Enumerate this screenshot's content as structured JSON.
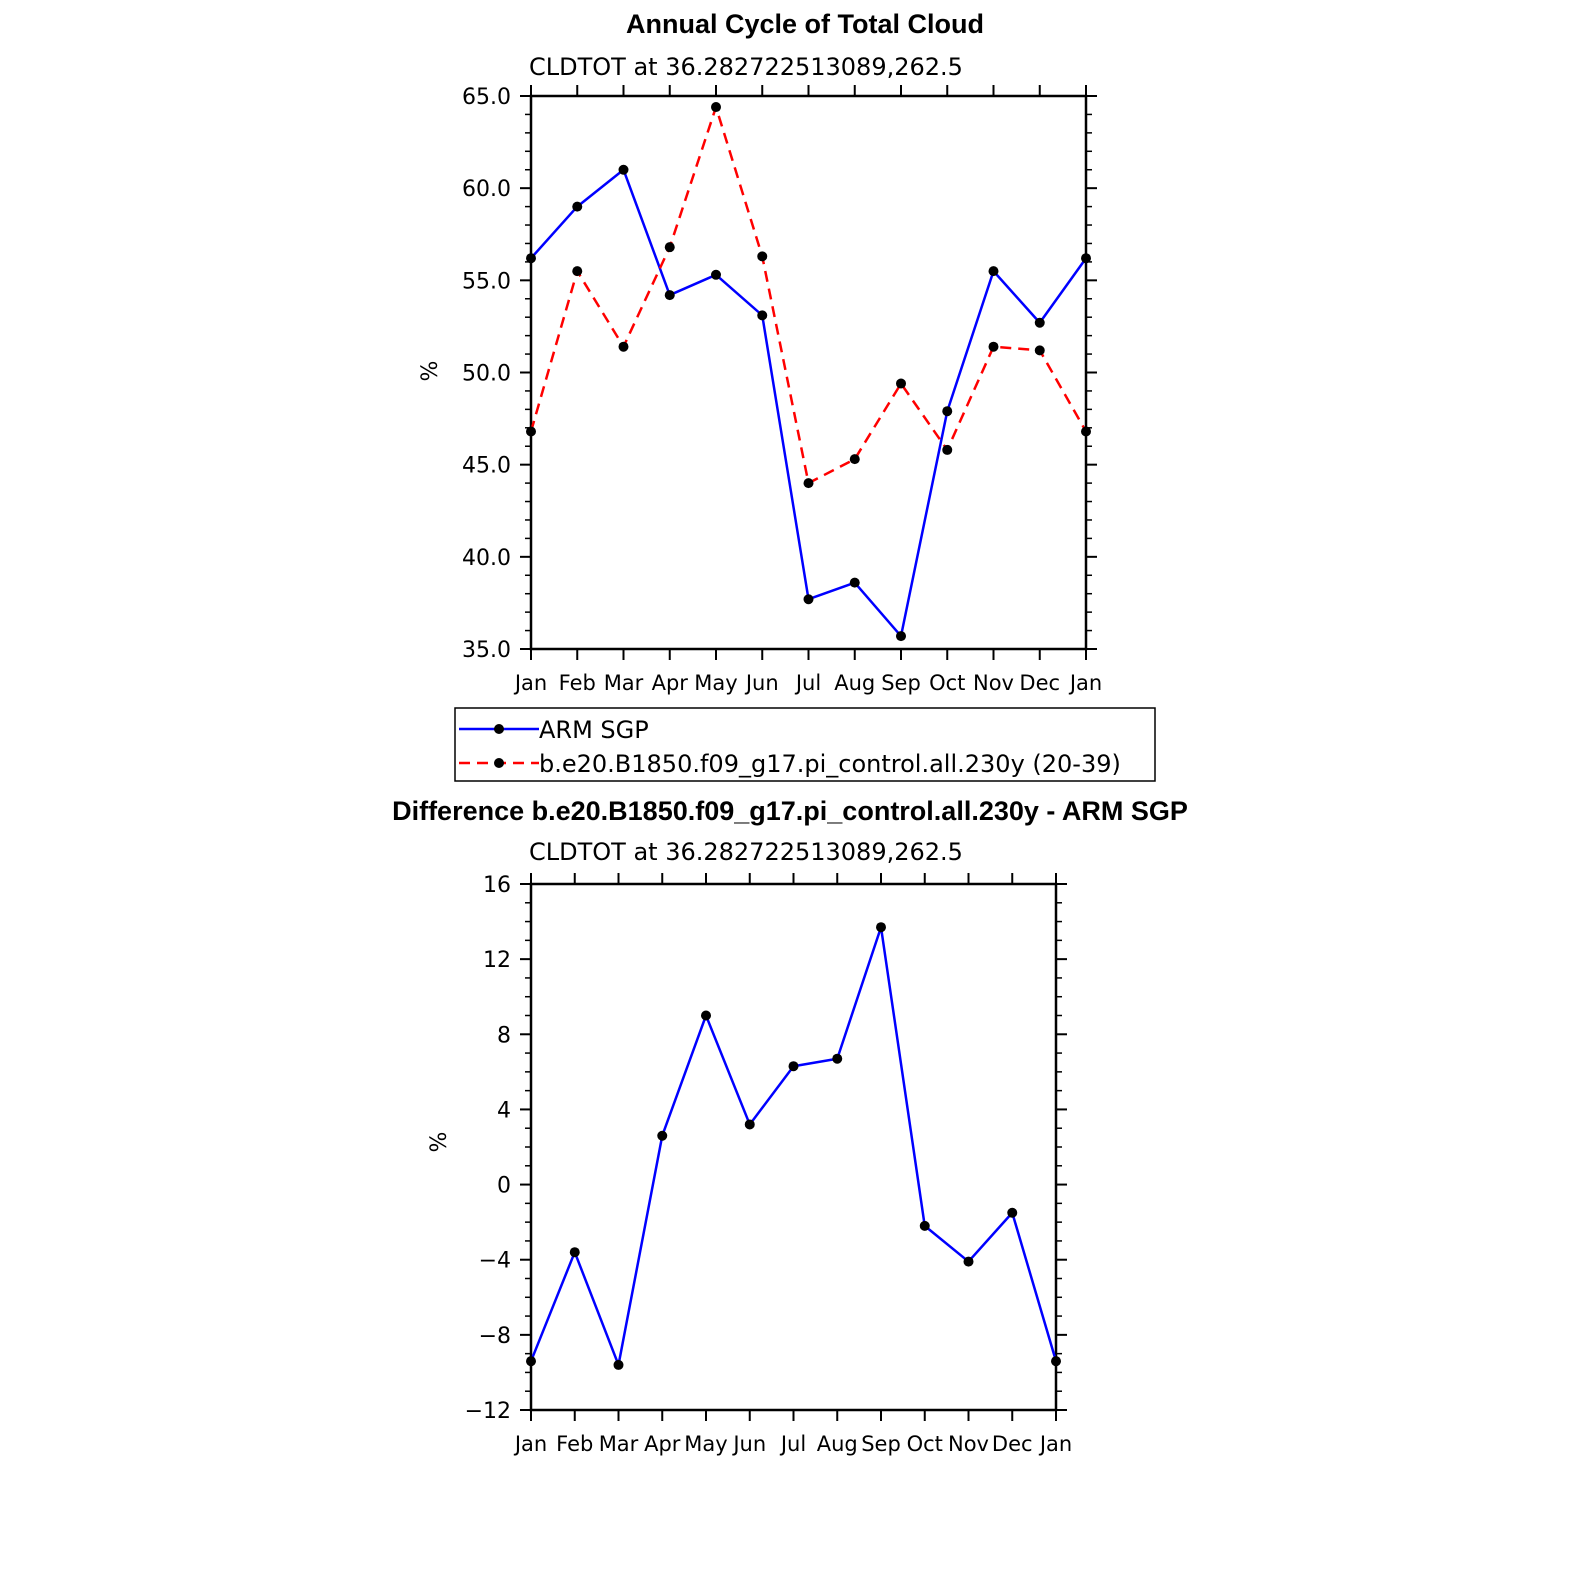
{
  "chart_data": [
    {
      "type": "line",
      "title": "Annual Cycle of Total Cloud",
      "subtitle": "CLDTOT at 36.282722513089,262.5",
      "ylabel": "%",
      "categories": [
        "Jan",
        "Feb",
        "Mar",
        "Apr",
        "May",
        "Jun",
        "Jul",
        "Aug",
        "Sep",
        "Oct",
        "Nov",
        "Dec",
        "Jan"
      ],
      "ylim": [
        35,
        65
      ],
      "yticks": [
        "35.0",
        "40.0",
        "45.0",
        "50.0",
        "55.0",
        "60.0",
        "65.0"
      ],
      "series": [
        {
          "name": "ARM SGP",
          "color": "#0000ff",
          "dash": "solid",
          "values": [
            56.2,
            59.0,
            61.0,
            54.2,
            55.3,
            53.1,
            37.7,
            38.6,
            35.7,
            47.9,
            55.5,
            52.7,
            56.2
          ]
        },
        {
          "name": "b.e20.B1850.f09_g17.pi_control.all.230y (20-39)",
          "color": "#ff0000",
          "dash": "dashed",
          "values": [
            46.8,
            55.5,
            51.4,
            56.8,
            64.4,
            56.3,
            44.0,
            45.3,
            49.4,
            45.8,
            51.4,
            51.2,
            46.8
          ]
        }
      ],
      "legend": "below"
    },
    {
      "type": "line",
      "title": "Difference b.e20.B1850.f09_g17.pi_control.all.230y - ARM SGP",
      "subtitle": "CLDTOT at 36.282722513089,262.5",
      "ylabel": "%",
      "categories": [
        "Jan",
        "Feb",
        "Mar",
        "Apr",
        "May",
        "Jun",
        "Jul",
        "Aug",
        "Sep",
        "Oct",
        "Nov",
        "Dec",
        "Jan"
      ],
      "ylim": [
        -12,
        16
      ],
      "yticks": [
        "−12",
        "−8",
        "−4",
        "0",
        "4",
        "8",
        "12",
        "16"
      ],
      "series": [
        {
          "color": "#0000ff",
          "dash": "solid",
          "values": [
            -9.4,
            -3.6,
            -9.6,
            2.6,
            9.0,
            3.2,
            6.3,
            6.7,
            13.7,
            -2.2,
            -4.1,
            -1.5,
            -9.4
          ]
        }
      ]
    }
  ]
}
